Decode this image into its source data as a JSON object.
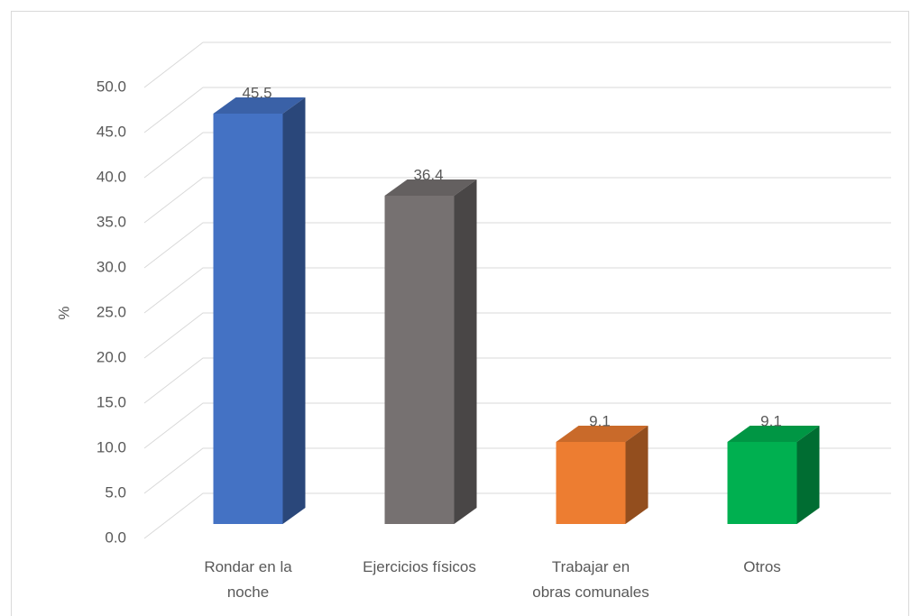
{
  "chart_data": {
    "type": "bar3d",
    "y_axis_label": "%",
    "categories": [
      "Rondar en la noche",
      "Ejercicios físicos",
      "Trabajar en obras comunales",
      "Otros"
    ],
    "values": [
      45.5,
      36.4,
      9.1,
      9.1
    ],
    "colors": [
      "#4472c4",
      "#767171",
      "#ed7d31",
      "#00b050"
    ],
    "ylim": [
      0,
      50
    ],
    "yticks": [
      {
        "value": 0,
        "label": "0.0"
      },
      {
        "value": 5,
        "label": "5.0"
      },
      {
        "value": 10,
        "label": "10.0"
      },
      {
        "value": 15,
        "label": "15.0"
      },
      {
        "value": 20,
        "label": "20.0"
      },
      {
        "value": 25,
        "label": "25.0"
      },
      {
        "value": 30,
        "label": "30.0"
      },
      {
        "value": 35,
        "label": "35.0"
      },
      {
        "value": 40,
        "label": "40.0"
      },
      {
        "value": 45,
        "label": "45.0"
      },
      {
        "value": 50,
        "label": "50.0"
      }
    ],
    "grid": true
  }
}
